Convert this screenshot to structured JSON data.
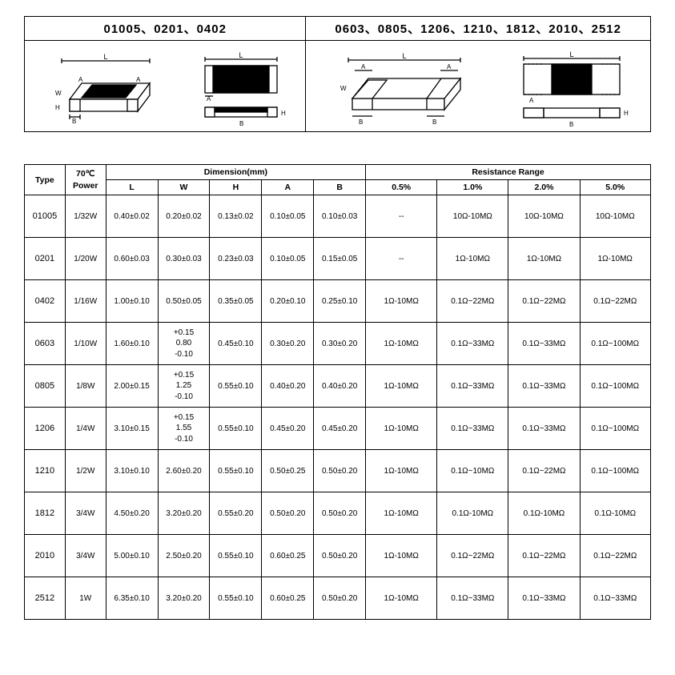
{
  "diagram": {
    "left_header": "01005、0201、0402",
    "right_header": "0603、0805、1206、1210、1812、2010、2512",
    "labels": {
      "L": "L",
      "W": "W",
      "H": "H",
      "A": "A",
      "B": "B"
    },
    "colors": {
      "line": "#000000",
      "fill_dark": "#000000",
      "fill_light": "#ffffff"
    }
  },
  "table": {
    "headers": {
      "type": "Type",
      "power": "70℃\nPower",
      "dimension_group": "Dimension(mm)",
      "resistance_group": "Resistance Range",
      "dim": [
        "L",
        "W",
        "H",
        "A",
        "B"
      ],
      "rr": [
        "0.5%",
        "1.0%",
        "2.0%",
        "5.0%"
      ]
    },
    "rows": [
      {
        "type": "01005",
        "power": "1/32W",
        "dim": [
          "0.40±0.02",
          "0.20±0.02",
          "0.13±0.02",
          "0.10±0.05",
          "0.10±0.03"
        ],
        "rr": [
          "--",
          "10Ω-10MΩ",
          "10Ω-10MΩ",
          "10Ω-10MΩ"
        ]
      },
      {
        "type": "0201",
        "power": "1/20W",
        "dim": [
          "0.60±0.03",
          "0.30±0.03",
          "0.23±0.03",
          "0.10±0.05",
          "0.15±0.05"
        ],
        "rr": [
          "--",
          "1Ω-10MΩ",
          "1Ω-10MΩ",
          "1Ω-10MΩ"
        ]
      },
      {
        "type": "0402",
        "power": "1/16W",
        "dim": [
          "1.00±0.10",
          "0.50±0.05",
          "0.35±0.05",
          "0.20±0.10",
          "0.25±0.10"
        ],
        "rr": [
          "1Ω-10MΩ",
          "0.1Ω~22MΩ",
          "0.1Ω~22MΩ",
          "0.1Ω~22MΩ"
        ]
      },
      {
        "type": "0603",
        "power": "1/10W",
        "dim": [
          "1.60±0.10",
          "+0.15\n0.80\n-0.10",
          "0.45±0.10",
          "0.30±0.20",
          "0.30±0.20"
        ],
        "rr": [
          "1Ω-10MΩ",
          "0.1Ω~33MΩ",
          "0.1Ω~33MΩ",
          "0.1Ω~100MΩ"
        ]
      },
      {
        "type": "0805",
        "power": "1/8W",
        "dim": [
          "2.00±0.15",
          "+0.15\n1.25\n-0.10",
          "0.55±0.10",
          "0.40±0.20",
          "0.40±0.20"
        ],
        "rr": [
          "1Ω-10MΩ",
          "0.1Ω~33MΩ",
          "0.1Ω~33MΩ",
          "0.1Ω~100MΩ"
        ]
      },
      {
        "type": "1206",
        "power": "1/4W",
        "dim": [
          "3.10±0.15",
          "+0.15\n1.55\n-0.10",
          "0.55±0.10",
          "0.45±0.20",
          "0.45±0.20"
        ],
        "rr": [
          "1Ω-10MΩ",
          "0.1Ω~33MΩ",
          "0.1Ω~33MΩ",
          "0.1Ω~100MΩ"
        ]
      },
      {
        "type": "1210",
        "power": "1/2W",
        "dim": [
          "3.10±0.10",
          "2.60±0.20",
          "0.55±0.10",
          "0.50±0.25",
          "0.50±0.20"
        ],
        "rr": [
          "1Ω-10MΩ",
          "0.1Ω~10MΩ",
          "0.1Ω~22MΩ",
          "0.1Ω~100MΩ"
        ]
      },
      {
        "type": "1812",
        "power": "3/4W",
        "dim": [
          "4.50±0.20",
          "3.20±0.20",
          "0.55±0.20",
          "0.50±0.20",
          "0.50±0.20"
        ],
        "rr": [
          "1Ω-10MΩ",
          "0.1Ω-10MΩ",
          "0.1Ω-10MΩ",
          "0.1Ω-10MΩ"
        ]
      },
      {
        "type": "2010",
        "power": "3/4W",
        "dim": [
          "5.00±0.10",
          "2.50±0.20",
          "0.55±0.10",
          "0.60±0.25",
          "0.50±0.20"
        ],
        "rr": [
          "1Ω-10MΩ",
          "0.1Ω~22MΩ",
          "0.1Ω~22MΩ",
          "0.1Ω~22MΩ"
        ]
      },
      {
        "type": "2512",
        "power": "1W",
        "dim": [
          "6.35±0.10",
          "3.20±0.20",
          "0.55±0.10",
          "0.60±0.25",
          "0.50±0.20"
        ],
        "rr": [
          "1Ω-10MΩ",
          "0.1Ω~33MΩ",
          "0.1Ω~33MΩ",
          "0.1Ω~33MΩ"
        ]
      }
    ]
  }
}
